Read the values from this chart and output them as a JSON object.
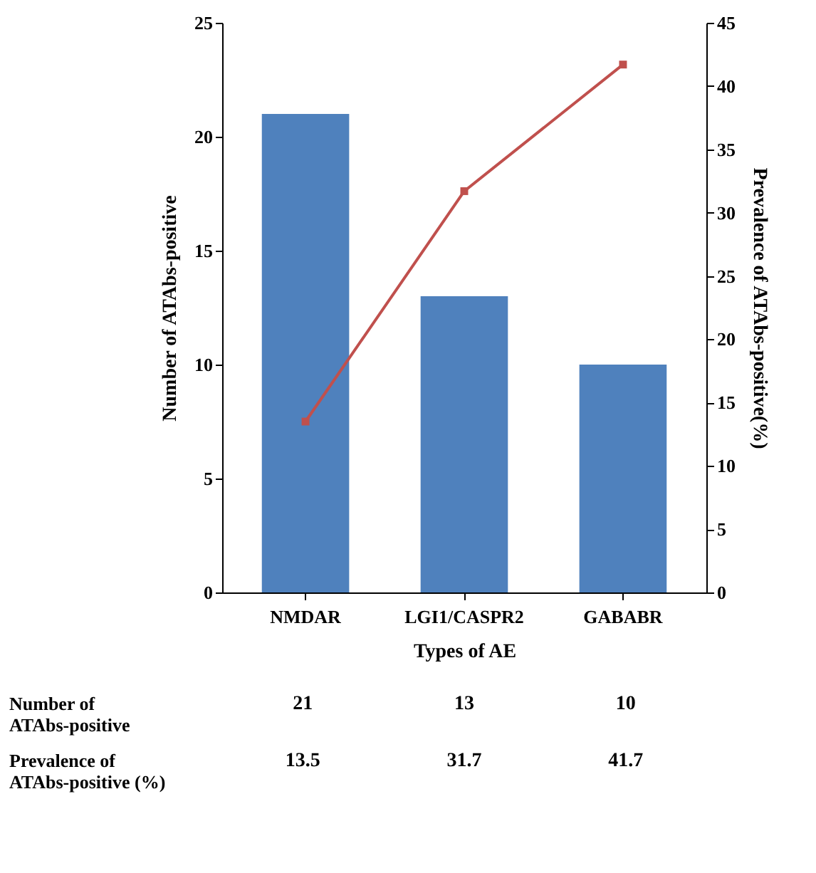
{
  "chart_data": {
    "type": "bar",
    "xlabel": "Types of AE",
    "ylabel": "Number of ATAbs-positive",
    "y2label": "Prevalence of ATAbs-positive(%)",
    "categories": [
      "NMDAR",
      "LGI1/CASPR2",
      "GABABR"
    ],
    "series": [
      {
        "color": "#4f81bd",
        "values": [
          21,
          13,
          10
        ]
      },
      {
        "type": "line",
        "axis": "y2",
        "color": "#c0504d",
        "values": [
          13.5,
          31.7,
          41.7
        ]
      }
    ],
    "ylim": [
      0,
      25
    ],
    "yticks": [
      0,
      5,
      10,
      15,
      20,
      25
    ],
    "y2lim": [
      0,
      45
    ],
    "y2ticks": [
      0,
      5,
      10,
      15,
      20,
      25,
      30,
      35,
      40,
      45
    ],
    "marker": "square",
    "line_style": "solid",
    "grid": false,
    "legend": false,
    "data_labels": true,
    "annotations": [
      "Number of ATAbs-positive",
      "Prevalence of ATAbs-positive (%)"
    ]
  }
}
